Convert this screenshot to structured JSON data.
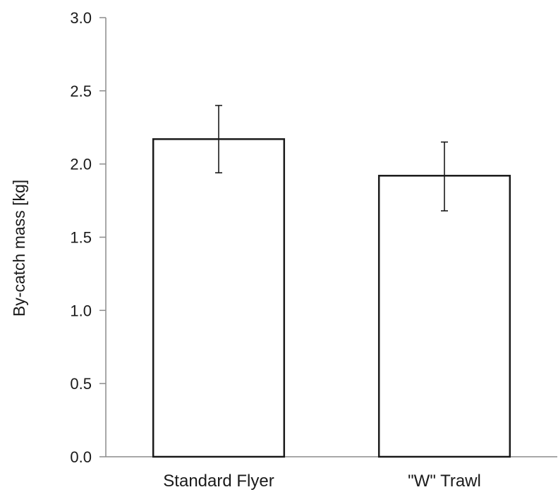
{
  "chart_data": {
    "type": "bar",
    "categories": [
      "Standard Flyer",
      "\"W\" Trawl"
    ],
    "values": [
      2.17,
      1.92
    ],
    "error_upper": [
      2.4,
      2.15
    ],
    "error_lower": [
      1.94,
      1.68
    ],
    "title": "",
    "xlabel": "",
    "ylabel": "By-catch mass [kg]",
    "ylim": [
      0,
      3.0
    ],
    "yticks": [
      "0.0",
      "0.5",
      "1.0",
      "1.5",
      "2.0",
      "2.5",
      "3.0"
    ],
    "ytick_values": [
      0,
      0.5,
      1.0,
      1.5,
      2.0,
      2.5,
      3.0
    ],
    "grid": false,
    "legend": "none",
    "bar_fill": "#ffffff",
    "bar_stroke": "#1a1a1a"
  }
}
